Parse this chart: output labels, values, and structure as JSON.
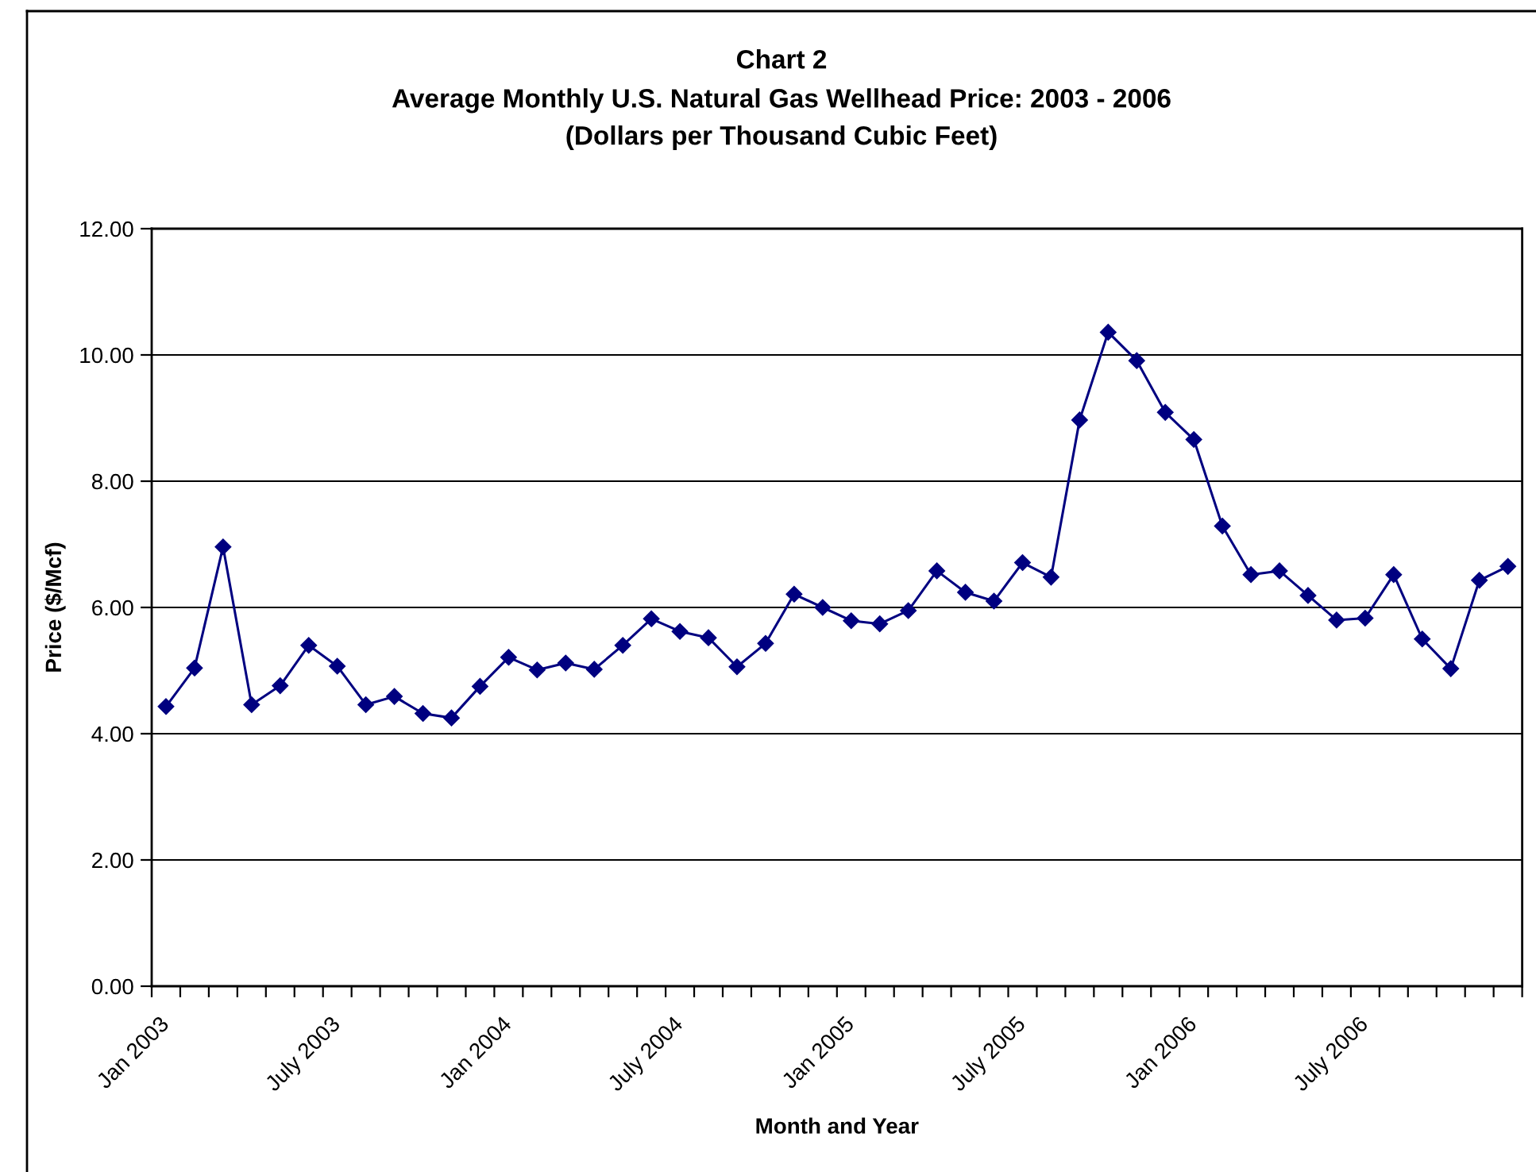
{
  "chart_data": {
    "type": "line",
    "title": "Chart 2\nAverage Monthly U.S. Natural Gas Wellhead Price: 2003 - 2006",
    "subtitle": "(Dollars per Thousand Cubic Feet)",
    "xlabel": "Month and Year",
    "ylabel": "Price ($/Mcf)",
    "categories": [
      "Jan 2003",
      null,
      null,
      null,
      null,
      null,
      "July 2003",
      null,
      null,
      null,
      null,
      null,
      "Jan 2004",
      null,
      null,
      null,
      null,
      null,
      "July 2004",
      null,
      null,
      null,
      null,
      null,
      "Jan 2005",
      null,
      null,
      null,
      null,
      null,
      "July 2005",
      null,
      null,
      null,
      null,
      null,
      "Jan 2006",
      null,
      null,
      null,
      null,
      null,
      "July 2006",
      null,
      null,
      null,
      null,
      null
    ],
    "series": [
      {
        "color": "#000080",
        "values": [
          4.43,
          5.04,
          6.96,
          4.46,
          4.76,
          5.4,
          5.07,
          4.46,
          4.59,
          4.32,
          4.25,
          4.75,
          5.21,
          5.01,
          5.12,
          5.02,
          5.4,
          5.82,
          5.62,
          5.52,
          5.06,
          5.43,
          6.21,
          6.0,
          5.79,
          5.74,
          5.95,
          6.58,
          6.24,
          6.1,
          6.71,
          6.48,
          8.97,
          10.36,
          9.91,
          9.09,
          8.66,
          7.29,
          6.52,
          6.58,
          6.19,
          5.8,
          5.83,
          6.52,
          5.5,
          5.03,
          6.43,
          6.65
        ]
      }
    ],
    "ylim": [
      0,
      12
    ],
    "yticks": [
      {
        "value": 0,
        "label": "0.00"
      },
      {
        "value": 2,
        "label": "2.00"
      },
      {
        "value": 4,
        "label": "4.00"
      },
      {
        "value": 6,
        "label": "6.00"
      },
      {
        "value": 8,
        "label": "8.00"
      },
      {
        "value": 10,
        "label": "10.00"
      },
      {
        "value": 12,
        "label": "12.00"
      }
    ],
    "grid": "y",
    "marker": "diamond",
    "line_style": "solid"
  }
}
